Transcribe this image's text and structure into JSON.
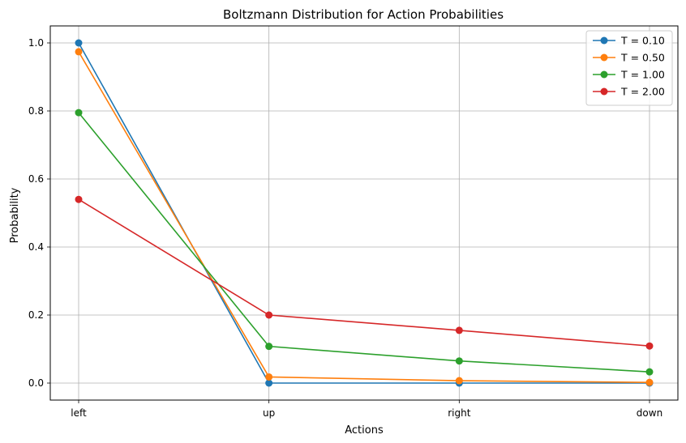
{
  "chart_data": {
    "type": "line",
    "title": "Boltzmann Distribution for Action Probabilities",
    "xlabel": "Actions",
    "ylabel": "Probability",
    "categories": [
      "left",
      "up",
      "right",
      "down"
    ],
    "ylim": [
      -0.05,
      1.05
    ],
    "yticks": [
      0.0,
      0.2,
      0.4,
      0.6,
      0.8,
      1.0
    ],
    "ytick_labels": [
      "0.0",
      "0.2",
      "0.4",
      "0.6",
      "0.8",
      "1.0"
    ],
    "grid": true,
    "legend_position": "top-right",
    "series": [
      {
        "name": "T = 0.10",
        "color": "#1f77b4",
        "values": [
          1.0,
          0.0,
          0.0,
          0.0
        ]
      },
      {
        "name": "T = 0.50",
        "color": "#ff7f0e",
        "values": [
          0.974,
          0.018,
          0.007,
          0.002
        ]
      },
      {
        "name": "T = 1.00",
        "color": "#2ca02c",
        "values": [
          0.795,
          0.108,
          0.065,
          0.033
        ]
      },
      {
        "name": "T = 2.00",
        "color": "#d62728",
        "values": [
          0.54,
          0.2,
          0.155,
          0.109
        ]
      }
    ]
  }
}
